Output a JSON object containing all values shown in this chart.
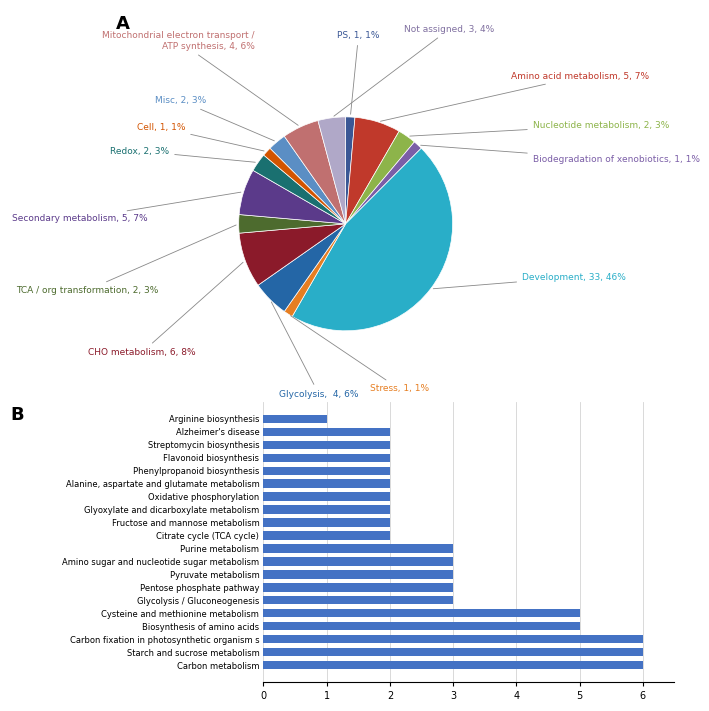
{
  "pie_labels": [
    "PS, 1, 1%",
    "Amino acid metabolism, 5, 7%",
    "Nucleotide metabolism, 2, 3%",
    "Biodegradation of xenobiotics, 1, 1%",
    "Development, 33, 46%",
    "Stress, 1, 1%",
    "Glycolysis,  4, 6%",
    "CHO metabolism, 6, 8%",
    "TCA / org transformation, 2, 3%",
    "Secondary metabolism, 5, 7%",
    "Redox, 2, 3%",
    "Cell, 1, 1%",
    "Misc, 2, 3%",
    "Mitochondrial electron transport /\nATP synthesis, 4, 6%",
    "Not assigned, 3, 4%"
  ],
  "pie_values": [
    1,
    5,
    2,
    1,
    33,
    1,
    4,
    6,
    2,
    5,
    2,
    1,
    2,
    4,
    3
  ],
  "pie_colors": [
    "#3a5795",
    "#c0392b",
    "#8db44a",
    "#7b5ea7",
    "#29aec8",
    "#e67e22",
    "#2466a6",
    "#8b1a2a",
    "#4d6b2e",
    "#5b3a8a",
    "#1a7070",
    "#d35400",
    "#5b8ec4",
    "#c07070",
    "#b0a8c8"
  ],
  "pie_label_colors": [
    "#3a5795",
    "#c0392b",
    "#8db44a",
    "#7b5ea7",
    "#29aec8",
    "#e67e22",
    "#2466a6",
    "#8b1a2a",
    "#4d6b2e",
    "#5b3a8a",
    "#1a7070",
    "#d35400",
    "#5b8ec4",
    "#c07070",
    "#8070a0"
  ],
  "bar_labels_top_to_bottom": [
    "Arginine biosynthesis",
    "Alzheimer's disease",
    "Streptomycin biosynthesis",
    "Flavonoid biosynthesis",
    "Phenylpropanoid biosynthesis",
    "Alanine, aspartate and glutamate metabolism",
    "Oxidative phosphorylation",
    "Glyoxylate and dicarboxylate metabolism",
    "Fructose and mannose metabolism",
    "Citrate cycle (TCA cycle)",
    "Purine metabolism",
    "Amino sugar and nucleotide sugar metabolism",
    "Pyruvate metabolism",
    "Pentose phosphate pathway",
    "Glycolysis / Gluconeogenesis",
    "Cysteine and methionine metabolism",
    "Biosynthesis of amino acids",
    "Carbon fixation in photosynthetic organism s",
    "Starch and sucrose metabolism",
    "Carbon metabolism"
  ],
  "bar_values_top_to_bottom": [
    1,
    2,
    2,
    2,
    2,
    2,
    2,
    2,
    2,
    2,
    3,
    3,
    3,
    3,
    3,
    5,
    5,
    6,
    6,
    6
  ],
  "bar_color": "#4472c4",
  "bar_xlim": [
    0,
    6.5
  ],
  "bar_xticks": [
    0,
    1,
    2,
    3,
    4,
    5,
    6
  ]
}
